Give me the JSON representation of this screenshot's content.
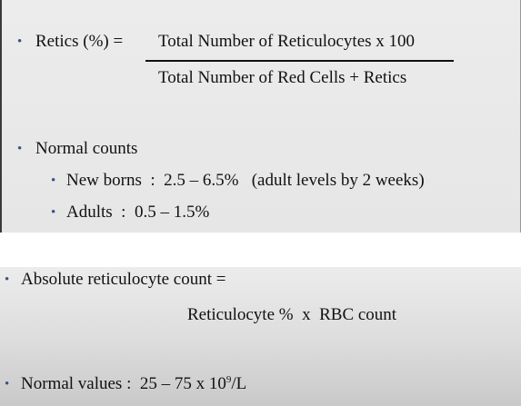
{
  "retics_formula": {
    "label": "Retics (%) =",
    "numerator": "Total Number of Reticulocytes x 100",
    "denominator": "Total Number of Red Cells + Retics"
  },
  "normal_counts": {
    "heading": "Normal counts",
    "items": [
      {
        "text": "New borns  :  2.5 – 6.5%   (adult levels by 2 weeks)"
      },
      {
        "text": "Adults  :  0.5 – 1.5%"
      }
    ]
  },
  "absolute_count": {
    "label": "Absolute reticulocyte count =",
    "formula": "Reticulocyte %  x  RBC count"
  },
  "normal_values": {
    "prefix": "Normal values :  25 – 75 x 10",
    "exponent": "9",
    "suffix": "/L"
  },
  "colors": {
    "bullet": "#3b4f8a",
    "text": "#111111"
  },
  "icons": {
    "bullet": "bullet-dot"
  }
}
